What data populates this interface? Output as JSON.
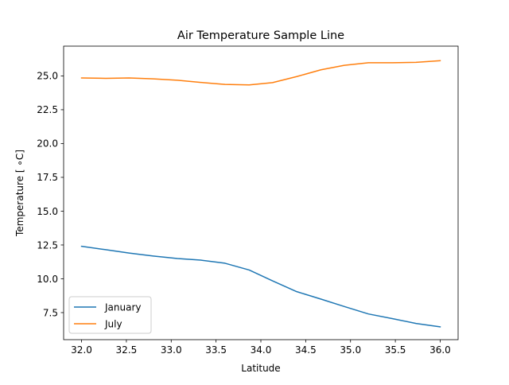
{
  "chart_data": {
    "type": "line",
    "title": "Air Temperature Sample Line",
    "xlabel": "Latitude",
    "ylabel": "Temperature [$^\\circ$C]",
    "ylabel_display": "Temperature [ ∘C]",
    "xlim": [
      31.8,
      36.2
    ],
    "ylim": [
      5.5,
      27.2
    ],
    "xticks": [
      32.0,
      32.5,
      33.0,
      33.5,
      34.0,
      34.5,
      35.0,
      35.5,
      36.0
    ],
    "xtick_labels": [
      "32.0",
      "32.5",
      "33.0",
      "33.5",
      "34.0",
      "34.5",
      "35.0",
      "35.5",
      "36.0"
    ],
    "yticks": [
      7.5,
      10.0,
      12.5,
      15.0,
      17.5,
      20.0,
      22.5,
      25.0
    ],
    "ytick_labels": [
      "7.5",
      "10.0",
      "12.5",
      "15.0",
      "17.5",
      "20.0",
      "22.5",
      "25.0"
    ],
    "grid": false,
    "legend_position": "lower-left",
    "x": [
      32.0,
      32.27,
      32.53,
      32.8,
      33.07,
      33.33,
      33.6,
      33.87,
      34.13,
      34.4,
      34.67,
      34.93,
      35.2,
      35.47,
      35.73,
      36.0
    ],
    "series": [
      {
        "name": "January",
        "color": "#1f77b4",
        "values": [
          12.4,
          12.15,
          11.9,
          11.68,
          11.5,
          11.38,
          11.15,
          10.65,
          9.85,
          9.05,
          8.5,
          7.95,
          7.4,
          7.05,
          6.7,
          6.45
        ]
      },
      {
        "name": "July",
        "color": "#ff7f0e",
        "values": [
          24.85,
          24.82,
          24.85,
          24.78,
          24.68,
          24.52,
          24.37,
          24.33,
          24.5,
          24.95,
          25.45,
          25.78,
          25.97,
          25.97,
          26.0,
          26.12
        ]
      }
    ]
  }
}
